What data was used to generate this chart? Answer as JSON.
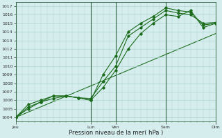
{
  "title": "",
  "xlabel": "Pression niveau de la mer( hPa )",
  "ylabel": "",
  "bg_color": "#d5eded",
  "grid_color": "#b0d4d4",
  "line_color": "#1a6b1a",
  "dark_line_color": "#1a5c1a",
  "xlim": [
    0,
    96
  ],
  "ylim": [
    1003.5,
    1017.5
  ],
  "day_ticks_x": [
    0,
    36,
    48,
    72,
    96
  ],
  "day_labels": [
    "Jeu",
    "Lun",
    "Ven",
    "Sam",
    "Dim"
  ],
  "minor_ticks_x": [
    0,
    3,
    6,
    9,
    12,
    15,
    18,
    21,
    24,
    27,
    30,
    33,
    36,
    39,
    42,
    45,
    48,
    51,
    54,
    57,
    60,
    63,
    66,
    69,
    72,
    75,
    78,
    81,
    84,
    87,
    90,
    93,
    96
  ],
  "line1_x": [
    0,
    6,
    12,
    18,
    24,
    30,
    36,
    42,
    48,
    54,
    60,
    66,
    72,
    78,
    84,
    90,
    96
  ],
  "line1_y": [
    1004.0,
    1005.2,
    1005.8,
    1006.2,
    1006.5,
    1006.3,
    1006.2,
    1008.2,
    1010.0,
    1013.5,
    1014.5,
    1015.5,
    1016.5,
    1016.2,
    1016.0,
    1015.0,
    1015.1
  ],
  "line2_x": [
    0,
    6,
    12,
    18,
    24,
    30,
    36,
    42,
    48,
    54,
    60,
    66,
    72,
    78,
    84,
    90,
    96
  ],
  "line2_y": [
    1004.0,
    1005.5,
    1006.0,
    1006.5,
    1006.5,
    1006.3,
    1006.0,
    1009.0,
    1011.2,
    1014.0,
    1015.0,
    1015.8,
    1016.8,
    1016.5,
    1016.3,
    1014.8,
    1015.0
  ],
  "line3_x": [
    0,
    96
  ],
  "line3_y": [
    1004.0,
    1013.8
  ],
  "line4_x": [
    0,
    6,
    12,
    18,
    24,
    30,
    36,
    42,
    48,
    54,
    60,
    66,
    72,
    78,
    84,
    90,
    96
  ],
  "line4_y": [
    1004.0,
    1005.0,
    1005.8,
    1006.5,
    1006.5,
    1006.3,
    1006.0,
    1007.5,
    1009.5,
    1012.0,
    1013.8,
    1015.0,
    1016.0,
    1015.8,
    1016.5,
    1014.5,
    1015.0
  ]
}
